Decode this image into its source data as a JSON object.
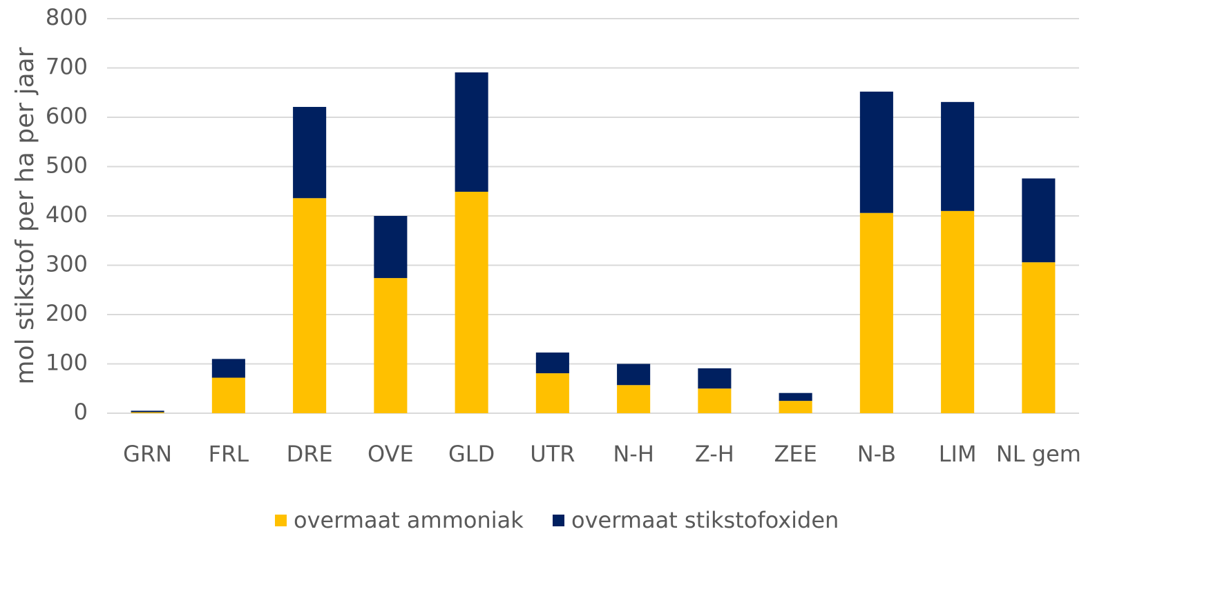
{
  "chart_data": {
    "type": "stacked_bar",
    "y_label": "mol stikstof per ha per jaar",
    "categories": [
      "GRN",
      "FRL",
      "DRE",
      "OVE",
      "GLD",
      "UTR",
      "N-H",
      "Z-H",
      "ZEE",
      "N-B",
      "LIM",
      "NL gem"
    ],
    "series": [
      {
        "name": "overmaat ammoniak",
        "color": "#FFC000",
        "values": [
          2,
          72,
          436,
          274,
          449,
          81,
          57,
          50,
          25,
          406,
          410,
          306
        ]
      },
      {
        "name": "overmaat stikstofoxiden",
        "color": "#002060",
        "values": [
          3,
          38,
          185,
          126,
          242,
          42,
          43,
          41,
          16,
          246,
          221,
          170
        ]
      }
    ],
    "ylim": [
      0,
      800
    ],
    "yticks": [
      0,
      100,
      200,
      300,
      400,
      500,
      600,
      700,
      800
    ],
    "grid": true,
    "legend": "bottom"
  }
}
